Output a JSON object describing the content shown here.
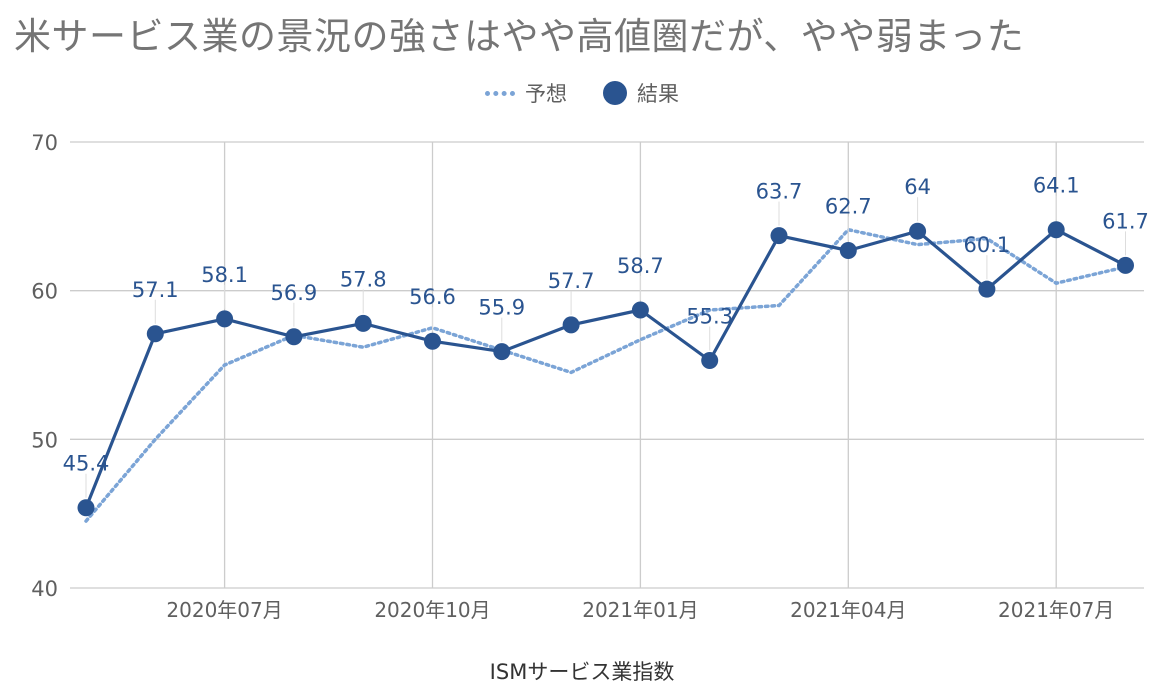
{
  "title": "米サービス業の景況の強さはやや高値圏だが、やや弱まった",
  "legend": {
    "forecast_label": "予想",
    "result_label": "結果"
  },
  "xaxis_title": "ISMサービス業指数",
  "colors": {
    "forecast": "#7ba4d6",
    "result": "#2a5490",
    "grid": "#cccccc",
    "tick_text": "#5f5f5f"
  },
  "chart_data": {
    "type": "line",
    "title": "米サービス業の景況の強さはやや高値圏だが、やや弱まった",
    "xlabel": "ISMサービス業指数",
    "ylabel": "",
    "ylim": [
      40,
      70
    ],
    "yticks": [
      40,
      50,
      60,
      70
    ],
    "x": [
      "2020-05",
      "2020-06",
      "2020-07",
      "2020-08",
      "2020-09",
      "2020-10",
      "2020-11",
      "2020-12",
      "2021-01",
      "2021-02",
      "2021-03",
      "2021-04",
      "2021-05",
      "2021-06",
      "2021-07",
      "2021-08"
    ],
    "xtick_labels": [
      {
        "x": "2020-07",
        "label": "2020年07月"
      },
      {
        "x": "2020-10",
        "label": "2020年10月"
      },
      {
        "x": "2021-01",
        "label": "2021年01月"
      },
      {
        "x": "2021-04",
        "label": "2021年04月"
      },
      {
        "x": "2021-07",
        "label": "2021年07月"
      }
    ],
    "series": [
      {
        "name": "予想",
        "style": "dotted",
        "values": [
          44.5,
          50.0,
          55.0,
          57.0,
          56.2,
          57.5,
          56.0,
          54.5,
          56.7,
          58.7,
          59.0,
          64.1,
          63.1,
          63.5,
          60.5,
          61.6
        ]
      },
      {
        "name": "結果",
        "style": "solid-markers",
        "values": [
          45.4,
          57.1,
          58.1,
          56.9,
          57.8,
          56.6,
          55.9,
          57.7,
          58.7,
          55.3,
          63.7,
          62.7,
          64.0,
          60.1,
          64.1,
          61.7
        ]
      }
    ],
    "data_labels": [
      "45.4",
      "57.1",
      "58.1",
      "56.9",
      "57.8",
      "56.6",
      "55.9",
      "57.7",
      "58.7",
      "55.3",
      "63.7",
      "62.7",
      "64",
      "60.1",
      "64.1",
      "61.7"
    ],
    "grid": true,
    "legend_position": "top-center"
  }
}
